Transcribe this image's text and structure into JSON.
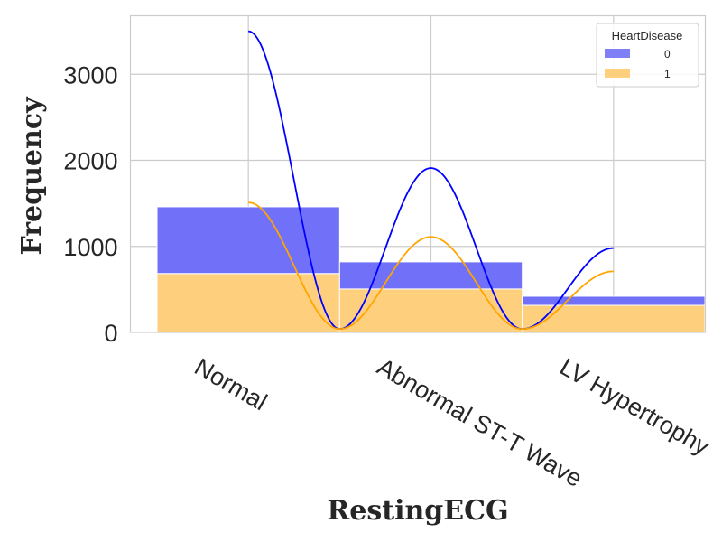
{
  "chart_data": {
    "type": "bar",
    "stacked": true,
    "kde_overlay": true,
    "categories": [
      "Normal",
      "Abnormal ST-T Wave",
      "LV Hypertrophy"
    ],
    "xlabel": "RestingECG",
    "ylabel": "Frequency",
    "ylim": [
      0,
      3680
    ],
    "yticks": [
      0,
      1000,
      2000,
      3000
    ],
    "grid": true,
    "legend": {
      "title": "HeartDisease",
      "placement": "top-right",
      "entries": [
        "0",
        "1"
      ]
    },
    "series": [
      {
        "name": "0",
        "color": "#7070f8",
        "values": [
          775,
          315,
          105
        ]
      },
      {
        "name": "1",
        "color": "#fecf7c",
        "values": [
          685,
          505,
          315
        ]
      }
    ],
    "kde": [
      {
        "name": "0",
        "color": "#0000ff",
        "peaks": [
          3500,
          1910,
          980
        ]
      },
      {
        "name": "1",
        "color": "#ffa500",
        "peaks": [
          1510,
          1110,
          710
        ]
      }
    ]
  }
}
